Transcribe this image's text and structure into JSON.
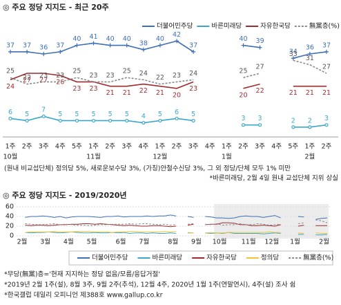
{
  "chart_data": [
    {
      "type": "line",
      "title": "◎ 주요 정당 지지도 - 최근 20주",
      "categories": [
        "1주",
        "2주",
        "3주",
        "4주",
        "5주",
        "1주",
        "2주",
        "3주",
        "4주",
        "1주",
        "2주",
        "3주",
        "4주",
        "1주",
        "2주",
        "3주",
        "4주",
        "5주",
        "1주",
        "2주"
      ],
      "category_groups": [
        "10월",
        null,
        null,
        null,
        null,
        "11월",
        null,
        null,
        null,
        "12월",
        null,
        null,
        null,
        "1월",
        null,
        null,
        null,
        null,
        "2월",
        null
      ],
      "ylim": [
        0,
        45
      ],
      "data_labels": true,
      "series": [
        {
          "name": "더불어민주당",
          "color": "#3d6fb4",
          "marker": "plus",
          "dash": false,
          "values": [
            37,
            37,
            36,
            37,
            40,
            41,
            40,
            40,
            38,
            40,
            42,
            37,
            null,
            null,
            40,
            39,
            null,
            34,
            36,
            37
          ]
        },
        {
          "name": "바른미래당",
          "color": "#3aa7c9",
          "marker": "circle",
          "dash": false,
          "values": [
            6,
            5,
            7,
            5,
            5,
            5,
            5,
            5,
            4,
            5,
            6,
            5,
            null,
            null,
            3,
            3,
            null,
            2,
            2,
            3
          ]
        },
        {
          "name": "자유한국당",
          "color": "#9e2a2b",
          "marker": null,
          "dash": false,
          "values": [
            24,
            27,
            27,
            26,
            23,
            23,
            21,
            21,
            22,
            21,
            20,
            23,
            null,
            null,
            20,
            22,
            null,
            21,
            21,
            21
          ]
        },
        {
          "name": "無黨층(%)",
          "color": "#8a8a8a",
          "marker": null,
          "dash": true,
          "values": [
            25,
            22,
            23,
            23,
            25,
            23,
            23,
            25,
            24,
            22,
            23,
            24,
            null,
            null,
            25,
            27,
            null,
            33,
            31,
            27
          ]
        }
      ],
      "notes": [
        "(원내 비교섭단체) 정의당 5%, 새로운보수당 3%, (가칭)안철수신당 3%, 그 외 정당/단체 모두 1% 미만",
        "*바른미래당, 2월 4일 원내 교섭단체 지위 상실"
      ]
    },
    {
      "type": "line",
      "title": "◎ 주요 정당 지지도 - 2019/2020년",
      "categories": [
        "2월",
        null,
        null,
        null,
        "3월",
        null,
        null,
        null,
        "4월",
        null,
        null,
        null,
        "5월",
        null,
        null,
        null,
        null,
        "6월",
        null,
        null,
        null,
        "7월",
        null,
        null,
        null,
        null,
        "8월",
        null,
        null,
        null,
        "9월",
        null,
        null,
        null,
        "10월",
        null,
        null,
        null,
        null,
        "11월",
        null,
        null,
        null,
        "12월",
        null,
        null,
        null,
        "1월",
        null,
        null,
        null,
        null,
        "2월",
        null
      ],
      "ylim": [
        0,
        60
      ],
      "yticks": [
        0,
        20,
        40,
        60
      ],
      "grid": true,
      "data_labels": false,
      "series": [
        {
          "name": "더불어민주당",
          "color": "#3d6fb4",
          "marker": "plus",
          "dash": false,
          "values": [
            null,
            38,
            40,
            40,
            41,
            40,
            38,
            40,
            37,
            39,
            40,
            40,
            40,
            39,
            38,
            40,
            40,
            41,
            39,
            40,
            40,
            40,
            41,
            40,
            41,
            41,
            43,
            41,
            null,
            40,
            38,
            null,
            40,
            39,
            37,
            37,
            36,
            37,
            40,
            41,
            40,
            40,
            38,
            40,
            42,
            37,
            null,
            null,
            40,
            39,
            null,
            34,
            36,
            37
          ]
        },
        {
          "name": "바른미래당",
          "color": "#3aa7c9",
          "marker": null,
          "dash": false,
          "values": [
            null,
            7,
            6,
            7,
            7,
            8,
            7,
            6,
            7,
            8,
            7,
            6,
            6,
            7,
            6,
            6,
            7,
            6,
            7,
            5,
            6,
            6,
            5,
            6,
            5,
            5,
            6,
            5,
            null,
            6,
            6,
            null,
            6,
            5,
            6,
            5,
            7,
            5,
            5,
            5,
            5,
            5,
            4,
            5,
            6,
            5,
            null,
            null,
            3,
            3,
            null,
            2,
            2,
            3
          ]
        },
        {
          "name": "자유한국당",
          "color": "#9e2a2b",
          "marker": null,
          "dash": false,
          "values": [
            null,
            22,
            21,
            22,
            22,
            21,
            22,
            23,
            23,
            24,
            24,
            25,
            25,
            24,
            25,
            24,
            23,
            22,
            21,
            22,
            21,
            20,
            20,
            21,
            21,
            20,
            19,
            20,
            null,
            22,
            24,
            null,
            23,
            24,
            24,
            27,
            27,
            26,
            23,
            23,
            21,
            21,
            22,
            21,
            20,
            23,
            null,
            null,
            20,
            22,
            null,
            21,
            21,
            21
          ]
        },
        {
          "name": "정의당",
          "color": "#f2c230",
          "marker": null,
          "dash": false,
          "values": [
            null,
            7,
            8,
            8,
            8,
            8,
            9,
            8,
            8,
            8,
            9,
            9,
            9,
            8,
            8,
            8,
            7,
            8,
            8,
            9,
            9,
            8,
            8,
            8,
            8,
            9,
            8,
            9,
            null,
            7,
            6,
            null,
            6,
            7,
            6,
            6,
            7,
            7,
            7,
            7,
            7,
            7,
            7,
            8,
            7,
            7,
            null,
            null,
            6,
            5,
            null,
            6,
            5,
            5
          ]
        },
        {
          "name": "無黨층(%)",
          "color": "#8a8a8a",
          "marker": null,
          "dash": true,
          "values": [
            null,
            25,
            24,
            23,
            23,
            24,
            25,
            23,
            24,
            23,
            22,
            22,
            21,
            22,
            23,
            23,
            24,
            24,
            24,
            25,
            24,
            25,
            25,
            24,
            23,
            24,
            22,
            23,
            null,
            24,
            25,
            null,
            24,
            23,
            25,
            22,
            23,
            23,
            25,
            23,
            23,
            25,
            24,
            22,
            23,
            24,
            null,
            null,
            25,
            27,
            null,
            33,
            31,
            27
          ]
        }
      ],
      "notes": [
        "*무당(無黨)층='현재 지지하는 정당 없음/모름/응답거절'",
        "*2019년 2월 1주(설), 8월 3주, 9월 2주(추석), 12월 4주, 2020년 1월 1주(연말연시), 4주(설) 조사 쉼",
        "*한국갤럽 데일리 오피니언 제388호 www.gallup.co.kr"
      ]
    }
  ]
}
